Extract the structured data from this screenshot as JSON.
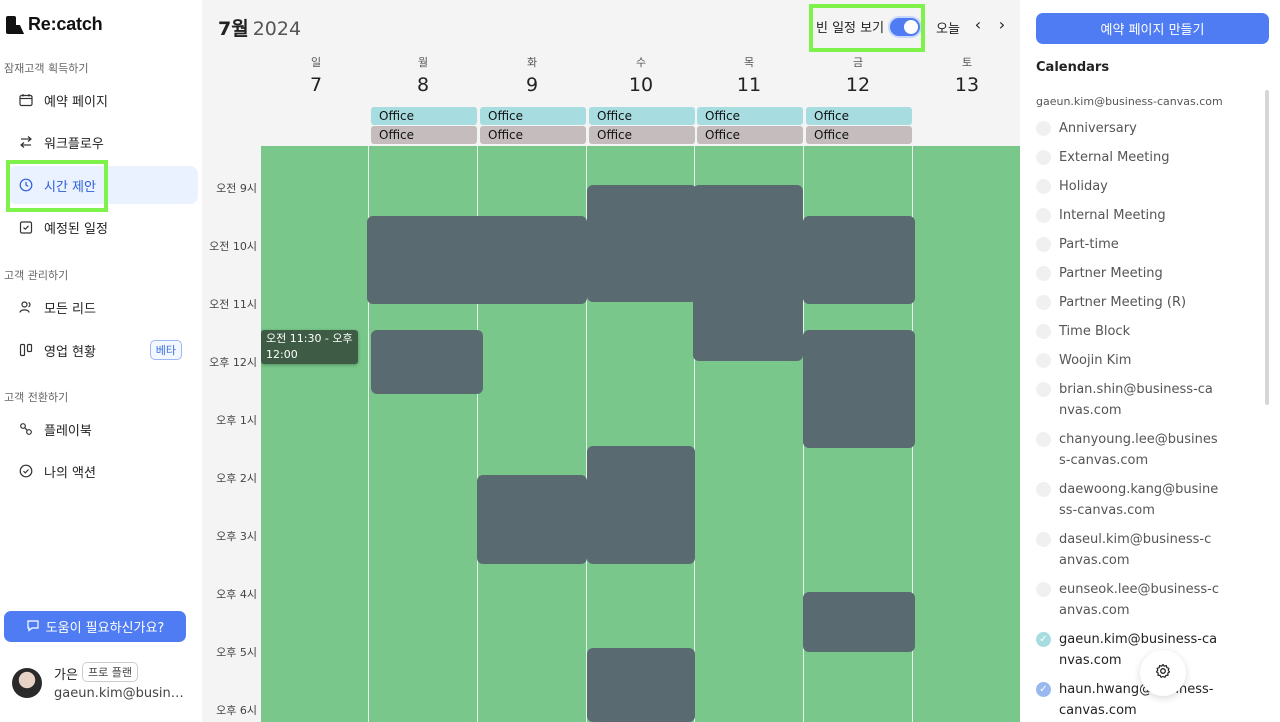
{
  "brand": {
    "name": "Re:catch"
  },
  "sidebar": {
    "sections": [
      {
        "label": "잠재고객 획득하기"
      },
      {
        "label": "고객 관리하기"
      },
      {
        "label": "고객 전환하기"
      }
    ],
    "items": [
      {
        "label": "예약 페이지",
        "icon": "calendar-icon"
      },
      {
        "label": "워크플로우",
        "icon": "workflow-icon"
      },
      {
        "label": "시간 제안",
        "icon": "clock-icon",
        "active": true
      },
      {
        "label": "예정된 일정",
        "icon": "calendar-check-icon"
      },
      {
        "label": "모든 리드",
        "icon": "users-icon"
      },
      {
        "label": "영업 현황",
        "icon": "kanban-icon",
        "badge": "베타"
      },
      {
        "label": "플레이북",
        "icon": "playbook-icon"
      },
      {
        "label": "나의 액션",
        "icon": "check-circle-icon"
      }
    ],
    "help_label": "도움이 필요하신가요?",
    "profile": {
      "name": "가은",
      "plan": "프로 플랜",
      "email": "gaeun.kim@business-canvas.com"
    }
  },
  "header": {
    "month": "7월",
    "year": "2024",
    "toggle_label": "빈 일정 보기",
    "toggle_on": true,
    "today_label": "오늘",
    "prev_icon": "chevron-left-icon",
    "next_icon": "chevron-right-icon"
  },
  "days": [
    {
      "dow": "일",
      "num": "7"
    },
    {
      "dow": "월",
      "num": "8"
    },
    {
      "dow": "화",
      "num": "9"
    },
    {
      "dow": "수",
      "num": "10"
    },
    {
      "dow": "목",
      "num": "11"
    },
    {
      "dow": "금",
      "num": "12"
    },
    {
      "dow": "토",
      "num": "13"
    }
  ],
  "allday_label": "Office",
  "time_labels": [
    "오전 9시",
    "오전 10시",
    "오전 11시",
    "오후 12시",
    "오후 1시",
    "오후 2시",
    "오후 3시",
    "오후 4시",
    "오후 5시",
    "오후 6시"
  ],
  "tooltip": "오전 11:30 - 오후 12:00",
  "colors": {
    "free": "#79c78a",
    "busy": "#596b70",
    "accent": "#4f7cf3",
    "allday_a": "#a7dde1",
    "allday_b": "#c5bdbd"
  },
  "right": {
    "create_label": "예약 페이지 만들기",
    "calendars_title": "Calendars",
    "account": "gaeun.kim@business-canvas.com",
    "calendars": [
      {
        "label": "Anniversary",
        "checked": false
      },
      {
        "label": "External Meeting",
        "checked": false
      },
      {
        "label": "Holiday",
        "checked": false
      },
      {
        "label": "Internal Meeting",
        "checked": false
      },
      {
        "label": "Part-time",
        "checked": false
      },
      {
        "label": "Partner Meeting",
        "checked": false
      },
      {
        "label": "Partner Meeting (R)",
        "checked": false
      },
      {
        "label": "Time Block",
        "checked": false
      },
      {
        "label": "Woojin Kim",
        "checked": false
      },
      {
        "label": "brian.shin@business-canvas.com",
        "checked": false
      },
      {
        "label": "chanyoung.lee@business-canvas.com",
        "checked": false
      },
      {
        "label": "daewoong.kang@business-canvas.com",
        "checked": false
      },
      {
        "label": "daseul.kim@business-canvas.com",
        "checked": false
      },
      {
        "label": "eunseok.lee@business-canvas.com",
        "checked": false
      },
      {
        "label": "gaeun.kim@business-canvas.com",
        "checked": true
      },
      {
        "label": "haun.hwang@business-canvas.com",
        "checked": true
      }
    ],
    "settings_icon": "gear-icon"
  }
}
